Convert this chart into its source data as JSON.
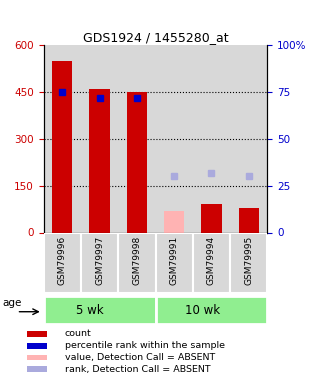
{
  "title": "GDS1924 / 1455280_at",
  "samples": [
    "GSM79996",
    "GSM79997",
    "GSM79998",
    "GSM79991",
    "GSM79994",
    "GSM79995"
  ],
  "group_labels": [
    "5 wk",
    "10 wk"
  ],
  "group_split": 3,
  "bar_values": [
    550,
    460,
    450,
    0,
    90,
    80
  ],
  "absent_bar_values": [
    0,
    0,
    0,
    70,
    0,
    0
  ],
  "absent_bar_color": "#ffb3b3",
  "bar_color": "#cc0000",
  "rank_values": [
    75,
    72,
    72,
    null,
    null,
    null
  ],
  "rank_absent_values": [
    null,
    null,
    null,
    30,
    32,
    30
  ],
  "rank_color": "#0000cc",
  "rank_absent_color": "#aaaadd",
  "ylim_left": [
    0,
    600
  ],
  "ylim_right": [
    0,
    100
  ],
  "yticks_left": [
    0,
    150,
    300,
    450,
    600
  ],
  "yticks_right": [
    0,
    25,
    50,
    75,
    100
  ],
  "ytick_labels_left": [
    "0",
    "150",
    "300",
    "450",
    "600"
  ],
  "ytick_labels_right": [
    "0",
    "25",
    "50",
    "75",
    "100%"
  ],
  "left_axis_color": "#cc0000",
  "right_axis_color": "#0000cc",
  "legend_items": [
    {
      "label": "count",
      "color": "#cc0000"
    },
    {
      "label": "percentile rank within the sample",
      "color": "#0000cc"
    },
    {
      "label": "value, Detection Call = ABSENT",
      "color": "#ffb3b3"
    },
    {
      "label": "rank, Detection Call = ABSENT",
      "color": "#aaaadd"
    }
  ],
  "bar_width": 0.55,
  "rank_marker_size": 5,
  "col_bg": "#d8d8d8",
  "group_bg": "#90ee90",
  "background_color": "#ffffff"
}
